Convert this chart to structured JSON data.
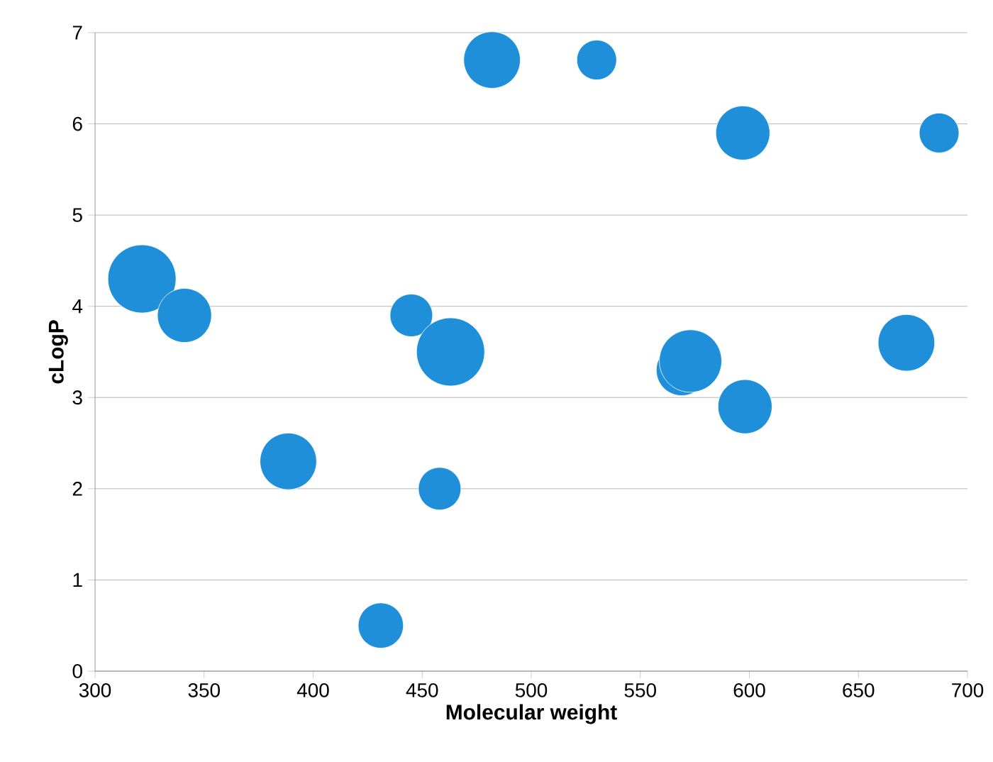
{
  "chart_data": {
    "type": "bubble",
    "xlabel": "Molecular weight",
    "ylabel": "cLogP",
    "x": [
      321.5,
      341,
      388.6,
      431,
      445,
      458,
      463,
      482,
      530,
      569,
      573,
      597,
      598,
      672,
      687
    ],
    "values": [
      4.3,
      3.9,
      2.3,
      0.5,
      3.9,
      2.0,
      3.5,
      6.7,
      6.7,
      3.3,
      3.4,
      5.9,
      2.9,
      3.6,
      5.9
    ],
    "sizes": [
      1,
      0.63,
      0.69,
      0.44,
      0.39,
      0.39,
      1,
      0.69,
      0.34,
      0.56,
      0.84,
      0.63,
      0.63,
      0.69,
      0.34
    ],
    "color": "#1e8fd8",
    "xlim": [
      300,
      700
    ],
    "ylim": [
      0,
      7
    ],
    "xticks": [
      300,
      350,
      400,
      450,
      500,
      550,
      600,
      650,
      700
    ],
    "yticks": [
      0,
      1,
      2,
      3,
      4,
      5,
      6,
      7
    ],
    "grid": "y"
  }
}
